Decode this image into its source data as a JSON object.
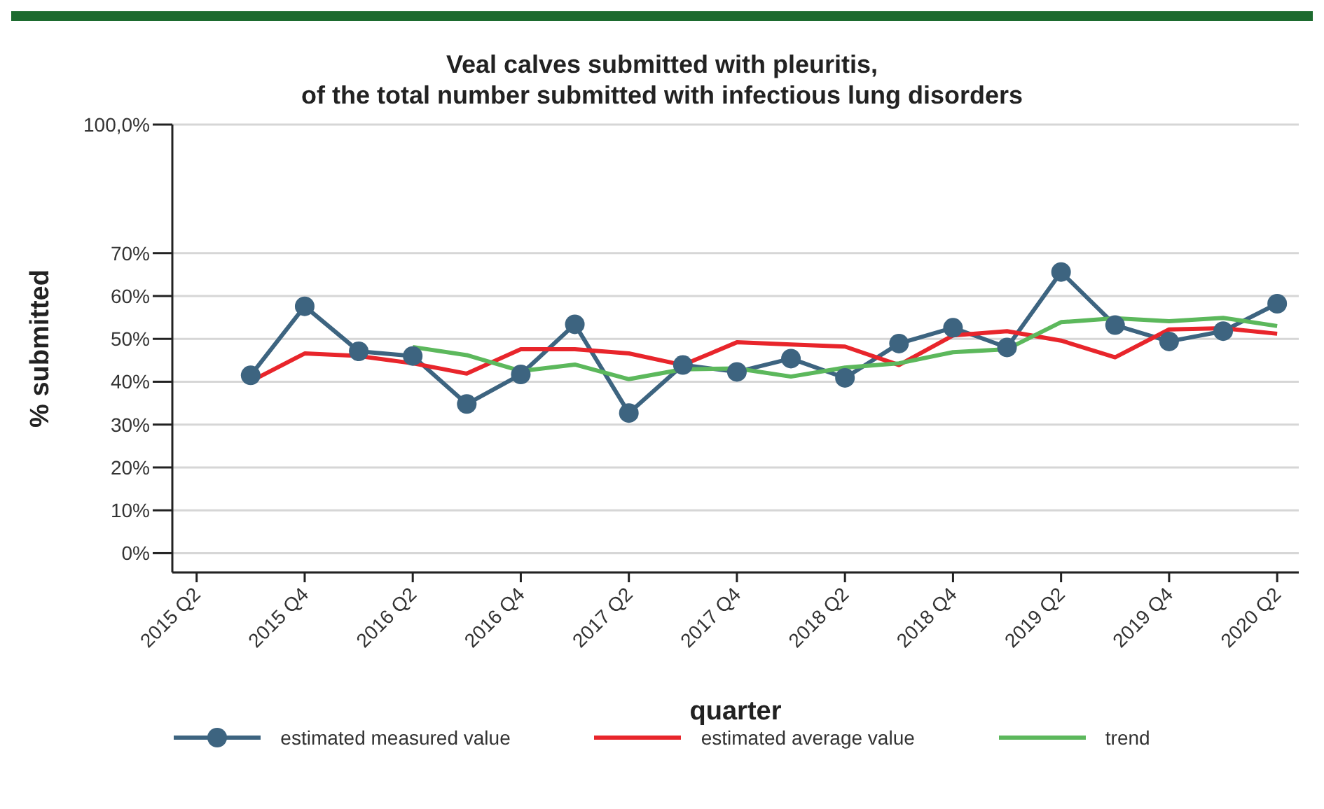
{
  "chart_data": {
    "type": "line",
    "title": "Veal calves submitted with pleuritis,\nof the total number submitted with infectious lung disorders",
    "xlabel": "quarter",
    "ylabel": "% submitted",
    "categories": [
      "2015 Q2",
      null,
      "2015 Q4",
      null,
      "2016 Q2",
      null,
      "2016 Q4",
      null,
      "2017 Q2",
      null,
      "2017 Q4",
      null,
      "2018 Q2",
      null,
      "2018 Q4",
      null,
      "2019 Q2",
      null,
      "2019 Q4",
      null,
      "2020 Q2"
    ],
    "series": [
      {
        "name": "estimated measured value",
        "color": "#3d6480",
        "marker": "circle",
        "values": [
          null,
          41.5,
          57.6,
          47.1,
          46.0,
          34.8,
          41.7,
          53.4,
          32.7,
          43.9,
          42.3,
          45.4,
          40.9,
          48.9,
          52.6,
          48.0,
          65.6,
          53.2,
          49.4,
          51.8,
          58.2
        ]
      },
      {
        "name": "estimated average value",
        "color": "#e8252b",
        "marker": "none",
        "values": [
          null,
          40.1,
          46.6,
          46.0,
          44.3,
          41.9,
          47.6,
          47.6,
          46.6,
          43.9,
          49.2,
          48.7,
          48.2,
          43.9,
          50.8,
          51.8,
          49.6,
          45.7,
          52.2,
          52.5,
          51.2
        ]
      },
      {
        "name": "trend",
        "color": "#5cb85c",
        "marker": "none",
        "values": [
          null,
          null,
          null,
          null,
          48.1,
          46.2,
          42.5,
          44.0,
          40.6,
          42.9,
          43.1,
          41.2,
          43.3,
          44.3,
          46.9,
          47.6,
          53.9,
          54.8,
          54.1,
          54.9,
          53.0
        ]
      }
    ],
    "ylim": [
      -4.5,
      100
    ],
    "yticks": [
      {
        "value": 0,
        "label": "0%"
      },
      {
        "value": 10,
        "label": "10%"
      },
      {
        "value": 20,
        "label": "20%"
      },
      {
        "value": 30,
        "label": "30%"
      },
      {
        "value": 40,
        "label": "40%"
      },
      {
        "value": 50,
        "label": "50%"
      },
      {
        "value": 60,
        "label": "60%"
      },
      {
        "value": 70,
        "label": "70%"
      },
      {
        "value": 100,
        "label": "100,0%"
      }
    ],
    "grid": "y",
    "legend": "bottom"
  }
}
